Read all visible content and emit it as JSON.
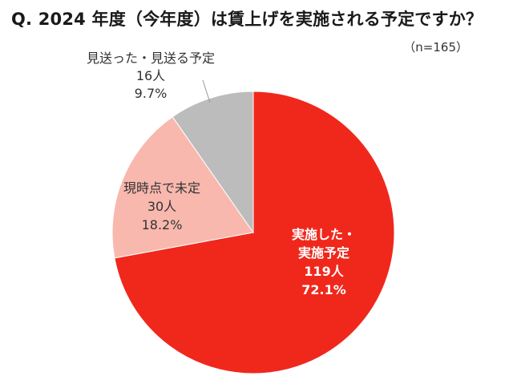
{
  "title": "Q. 2024 年度（今年度）は賃上げを実施される予定ですか？",
  "sample_note": "（n=165）",
  "chart_data": {
    "type": "pie",
    "title": "Q. 2024 年度（今年度）は賃上げを実施される予定ですか？",
    "total": 165,
    "start": "12 o'clock",
    "direction": "clockwise",
    "slices": [
      {
        "label_lines": [
          "実施した・",
          "実施予定"
        ],
        "count": "119人",
        "percent": "72.1%",
        "value": 72.1,
        "color": "#f0281c",
        "text_color": "#ffffff"
      },
      {
        "label_lines": [
          "現時点で未定"
        ],
        "count": "30人",
        "percent": "18.2%",
        "value": 18.2,
        "color": "#f8b8ae",
        "text_color": "#333333"
      },
      {
        "label_lines": [
          "見送った・見送る予定"
        ],
        "count": "16人",
        "percent": "9.7%",
        "value": 9.7,
        "color": "#bcbcbc",
        "text_color": "#333333"
      }
    ]
  }
}
